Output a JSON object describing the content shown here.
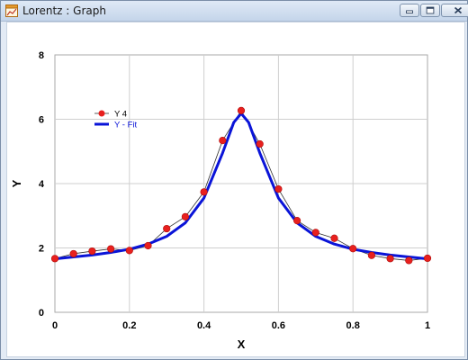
{
  "window": {
    "title": "Lorentz : Graph",
    "minimize_icon": "minimize-icon",
    "maximize_icon": "maximize-icon",
    "close_icon": "close-icon"
  },
  "chart_data": {
    "type": "line",
    "title": "",
    "xlabel": "X",
    "ylabel": "Y",
    "xlim": [
      0,
      1
    ],
    "ylim": [
      0,
      8
    ],
    "x_ticks": [
      "0",
      "0.2",
      "0.4",
      "0.6",
      "0.8",
      "1"
    ],
    "y_ticks": [
      "0",
      "2",
      "4",
      "6",
      "8"
    ],
    "grid": true,
    "legend_position": "top-left",
    "series": [
      {
        "name": "Y 4",
        "style": "markers-with-thin-line",
        "color": "#e8201e",
        "line_color": "#333333",
        "points": [
          [
            0,
            1.67
          ],
          [
            0.05,
            1.82
          ],
          [
            0.1,
            1.9
          ],
          [
            0.15,
            1.97
          ],
          [
            0.2,
            1.92
          ],
          [
            0.25,
            2.07
          ],
          [
            0.3,
            2.6
          ],
          [
            0.35,
            2.97
          ],
          [
            0.4,
            3.74
          ],
          [
            0.45,
            5.34
          ],
          [
            0.5,
            6.27
          ],
          [
            0.55,
            5.23
          ],
          [
            0.6,
            3.83
          ],
          [
            0.65,
            2.85
          ],
          [
            0.7,
            2.48
          ],
          [
            0.75,
            2.3
          ],
          [
            0.8,
            1.98
          ],
          [
            0.85,
            1.77
          ],
          [
            0.9,
            1.67
          ],
          [
            0.95,
            1.61
          ],
          [
            1.0,
            1.68
          ]
        ]
      },
      {
        "name": "Y - Fit",
        "style": "thick-line",
        "color": "#0a14d8",
        "points": [
          [
            0,
            1.66
          ],
          [
            0.05,
            1.72
          ],
          [
            0.1,
            1.78
          ],
          [
            0.15,
            1.86
          ],
          [
            0.2,
            1.96
          ],
          [
            0.25,
            2.12
          ],
          [
            0.3,
            2.36
          ],
          [
            0.35,
            2.78
          ],
          [
            0.4,
            3.55
          ],
          [
            0.45,
            4.95
          ],
          [
            0.48,
            5.9
          ],
          [
            0.5,
            6.18
          ],
          [
            0.52,
            5.9
          ],
          [
            0.55,
            4.95
          ],
          [
            0.6,
            3.55
          ],
          [
            0.65,
            2.78
          ],
          [
            0.7,
            2.36
          ],
          [
            0.75,
            2.12
          ],
          [
            0.8,
            1.96
          ],
          [
            0.85,
            1.86
          ],
          [
            0.9,
            1.78
          ],
          [
            0.95,
            1.72
          ],
          [
            1.0,
            1.66
          ]
        ]
      }
    ]
  }
}
